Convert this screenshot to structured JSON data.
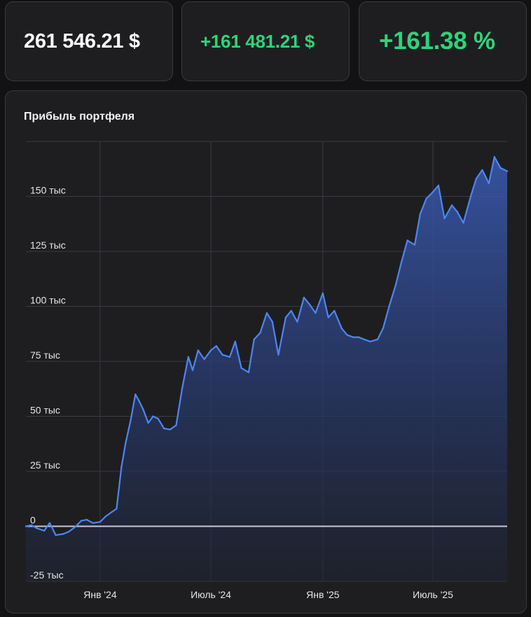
{
  "stats": {
    "total_value": "261 546.21 $",
    "absolute_profit": "+161 481.21 $",
    "percent_profit": "+161.38 %"
  },
  "colors": {
    "background": "#121214",
    "card": "#1e1e21",
    "positive": "#2ed47a",
    "line": "#4d86f5",
    "zero_line": "#c8c8d0"
  },
  "chart_data": {
    "type": "area",
    "title": "Прибыль портфеля",
    "xlabel": "",
    "ylabel": "",
    "ylim": [
      -25000,
      175000
    ],
    "xlim": [
      "2023-09-01",
      "2025-10-31"
    ],
    "yticks": [
      -25000,
      0,
      25000,
      50000,
      75000,
      100000,
      125000,
      150000
    ],
    "ytick_labels": [
      "-25 тыс",
      "0",
      "25 тыс",
      "50 тыс",
      "75 тыс",
      "100 тыс",
      "125 тыс",
      "150 тыс"
    ],
    "xticks": [
      "2024-01-01",
      "2024-07-01",
      "2025-01-01",
      "2025-07-01"
    ],
    "xtick_labels": [
      "Янв '24",
      "Июль '24",
      "Янв '25",
      "Июль '25"
    ],
    "grid": true,
    "series": [
      {
        "name": "",
        "x": [
          "2023-09-01",
          "2023-09-10",
          "2023-09-20",
          "2023-10-01",
          "2023-10-10",
          "2023-10-20",
          "2023-11-01",
          "2023-11-10",
          "2023-11-20",
          "2023-12-01",
          "2023-12-10",
          "2023-12-20",
          "2024-01-01",
          "2024-01-10",
          "2024-01-20",
          "2024-01-28",
          "2024-02-05",
          "2024-02-12",
          "2024-02-20",
          "2024-02-28",
          "2024-03-05",
          "2024-03-12",
          "2024-03-20",
          "2024-03-28",
          "2024-04-05",
          "2024-04-15",
          "2024-04-25",
          "2024-05-05",
          "2024-05-15",
          "2024-05-25",
          "2024-06-01",
          "2024-06-10",
          "2024-06-20",
          "2024-07-01",
          "2024-07-10",
          "2024-07-20",
          "2024-08-01",
          "2024-08-10",
          "2024-08-20",
          "2024-09-01",
          "2024-09-10",
          "2024-09-20",
          "2024-10-01",
          "2024-10-10",
          "2024-10-20",
          "2024-11-01",
          "2024-11-10",
          "2024-11-20",
          "2024-12-01",
          "2024-12-10",
          "2024-12-20",
          "2025-01-01",
          "2025-01-10",
          "2025-01-20",
          "2025-02-01",
          "2025-02-10",
          "2025-02-20",
          "2025-03-01",
          "2025-03-10",
          "2025-03-20",
          "2025-04-01",
          "2025-04-10",
          "2025-04-20",
          "2025-05-01",
          "2025-05-10",
          "2025-05-20",
          "2025-06-01",
          "2025-06-10",
          "2025-06-20",
          "2025-07-01",
          "2025-07-10",
          "2025-07-20",
          "2025-08-01",
          "2025-08-10",
          "2025-08-20",
          "2025-09-01",
          "2025-09-10",
          "2025-09-20",
          "2025-10-01",
          "2025-10-10",
          "2025-10-20",
          "2025-10-31"
        ],
        "y": [
          0,
          500,
          -1000,
          -2000,
          1500,
          -4000,
          -3500,
          -2500,
          -500,
          2500,
          3000,
          1500,
          2000,
          4500,
          6500,
          8000,
          27000,
          38000,
          48000,
          60000,
          57000,
          53000,
          47000,
          50000,
          49000,
          44500,
          44000,
          46000,
          63000,
          77000,
          71000,
          80000,
          76000,
          80000,
          82000,
          78000,
          77000,
          84000,
          72000,
          70000,
          85000,
          88000,
          97000,
          93000,
          78000,
          95000,
          98000,
          93000,
          104000,
          101000,
          97000,
          106000,
          95000,
          98000,
          90000,
          87000,
          86000,
          86000,
          85000,
          84000,
          85000,
          90000,
          100000,
          110000,
          120000,
          130000,
          128000,
          142000,
          149000,
          152000,
          155000,
          140000,
          146000,
          143000,
          138000,
          150000,
          158000,
          162000,
          156000,
          168000,
          163000,
          161481
        ]
      }
    ]
  }
}
